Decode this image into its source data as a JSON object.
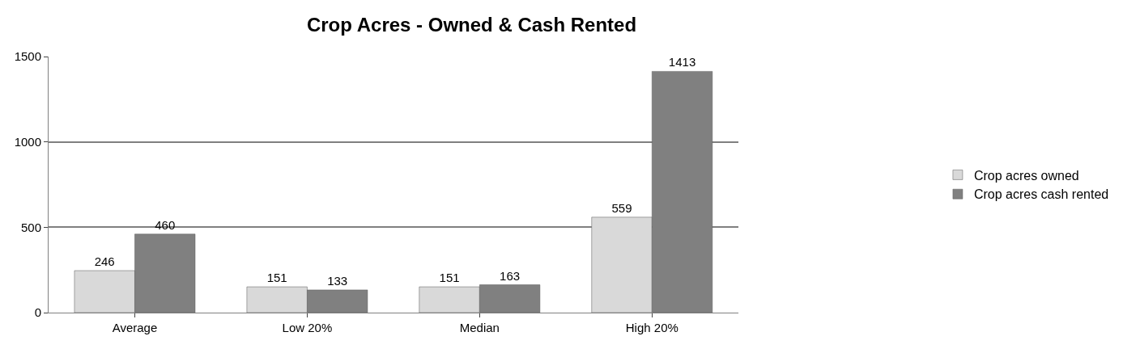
{
  "chart_data": {
    "type": "bar",
    "title": "Crop Acres - Owned & Cash Rented",
    "categories": [
      "Average",
      "Low 20%",
      "Median",
      "High 20%"
    ],
    "series": [
      {
        "name": "Crop acres owned",
        "color": "#d9d9d9",
        "values": [
          246,
          151,
          151,
          559
        ]
      },
      {
        "name": "Crop acres cash rented",
        "color": "#808080",
        "values": [
          460,
          133,
          163,
          1413
        ]
      }
    ],
    "ylim": [
      0,
      1500
    ],
    "yticks": [
      0,
      500,
      1000,
      1500
    ],
    "grid": "y",
    "legend": "right",
    "data_labels": true
  }
}
